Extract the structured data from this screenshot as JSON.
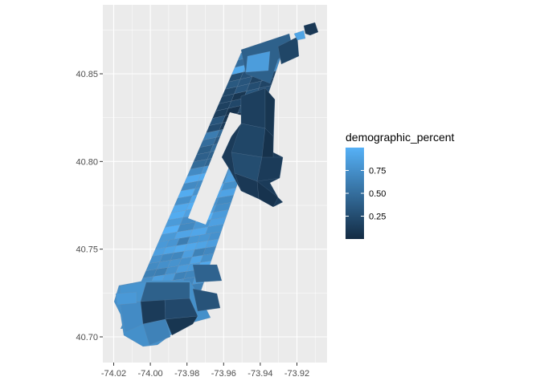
{
  "chart_data": {
    "type": "choropleth",
    "title": "",
    "xlabel": "",
    "ylabel": "",
    "xlim": [
      -74.03,
      -73.9
    ],
    "ylim": [
      40.686,
      40.88
    ],
    "x_ticks": [
      "-74.02",
      "-74.00",
      "-73.98",
      "-73.96",
      "-73.94",
      "-73.92"
    ],
    "x_tick_values": [
      -74.02,
      -74.0,
      -73.98,
      -73.96,
      -73.94,
      -73.92
    ],
    "y_ticks": [
      "40.70",
      "40.75",
      "40.80",
      "40.85"
    ],
    "y_tick_values": [
      40.7,
      40.75,
      40.8,
      40.85
    ],
    "grid": true,
    "legend": {
      "title": "demographic_percent",
      "placement": "right",
      "labels": [
        "0.75",
        "0.50",
        "0.25"
      ],
      "label_values": [
        0.75,
        0.5,
        0.25
      ],
      "range": [
        0.0,
        1.0
      ],
      "low_color": "#132B43",
      "high_color": "#56B1F7"
    },
    "colors": {
      "panel_background": "#EBEBEB",
      "grid_line": "#FFFFFF",
      "low": "#132B43",
      "high": "#56B1F7"
    }
  }
}
